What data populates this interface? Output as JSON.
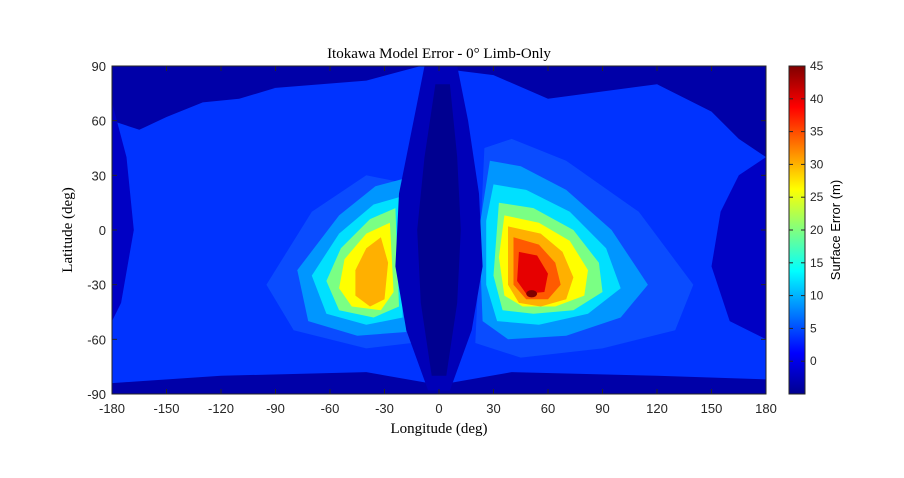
{
  "chart_data": {
    "type": "heatmap",
    "title": "Itokawa Model Error - 0° Limb-Only",
    "xlabel": "Longitude (deg)",
    "ylabel": "Latitude (deg)",
    "xlim": [
      -180,
      180
    ],
    "ylim": [
      -90,
      90
    ],
    "xticks": [
      "-180",
      "-150",
      "-120",
      "-90",
      "-60",
      "-30",
      "0",
      "30",
      "60",
      "90",
      "120",
      "150",
      "180"
    ],
    "yticks": [
      "90",
      "60",
      "30",
      "0",
      "-30",
      "-60",
      "-90"
    ],
    "grid": false,
    "colorbar": {
      "label": "Surface Error (m)",
      "range": [
        -5,
        45
      ],
      "ticks": [
        "45",
        "40",
        "35",
        "30",
        "25",
        "20",
        "15",
        "10",
        "5",
        "0"
      ],
      "colormap": "jet",
      "levels": [
        -5,
        0,
        5,
        10,
        15,
        20,
        25,
        30,
        35,
        40,
        45
      ]
    },
    "regions": [
      {
        "name": "east-lobe",
        "center_lon": 45,
        "center_lat": -28,
        "peak_error_m": 42
      },
      {
        "name": "west-lobe",
        "center_lon": -36,
        "center_lat": -28,
        "peak_error_m": 33
      },
      {
        "name": "central-seam",
        "lon": 0,
        "error_m": -5
      },
      {
        "name": "background",
        "error_m": 4
      }
    ]
  }
}
